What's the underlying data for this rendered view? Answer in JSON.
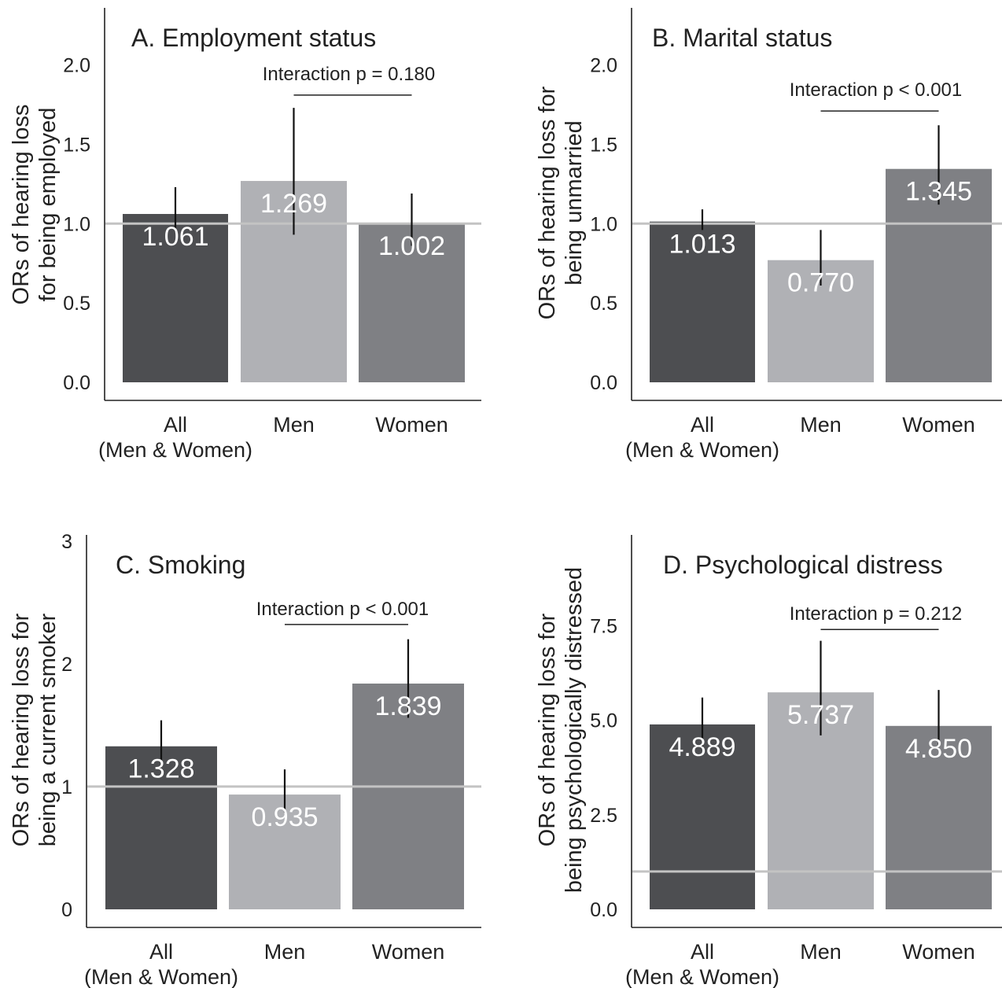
{
  "chart_data": [
    {
      "type": "bar",
      "title": "A. Employment status",
      "ylabel_line1": "ORs of hearing loss",
      "ylabel_line2": "for being employed",
      "categories": [
        [
          "All",
          "(Men & Women)"
        ],
        [
          "Men"
        ],
        [
          "Women"
        ]
      ],
      "values": [
        1.061,
        1.269,
        1.002
      ],
      "value_labels": [
        "1.061",
        "1.269",
        "1.002"
      ],
      "ci_low": [
        0.95,
        0.93,
        0.86
      ],
      "ci_high": [
        1.23,
        1.73,
        1.19
      ],
      "yticks": [
        "0.0",
        "0.5",
        "1.0",
        "1.5",
        "2.0"
      ],
      "ytick_values": [
        0,
        0.5,
        1.0,
        1.5,
        2.0
      ],
      "ylim": [
        0,
        2.36
      ],
      "reference_line": 1,
      "interaction_label": "Interaction p = 0.180",
      "interaction_value": 1.81,
      "bar_colors": [
        "#4d4e51",
        "#b0b1b5",
        "#7f8084"
      ],
      "grid": false
    },
    {
      "type": "bar",
      "title": "B. Marital status",
      "ylabel_line1": "ORs of hearing loss for",
      "ylabel_line2": "being unmarried",
      "categories": [
        [
          "All",
          "(Men & Women)"
        ],
        [
          "Men"
        ],
        [
          "Women"
        ]
      ],
      "values": [
        1.013,
        0.77,
        1.345
      ],
      "value_labels": [
        "1.013",
        "0.770",
        "1.345"
      ],
      "ci_low": [
        0.96,
        0.61,
        1.12
      ],
      "ci_high": [
        1.09,
        0.96,
        1.62
      ],
      "yticks": [
        "0.0",
        "0.5",
        "1.0",
        "1.5",
        "2.0"
      ],
      "ytick_values": [
        0,
        0.5,
        1.0,
        1.5,
        2.0
      ],
      "ylim": [
        0,
        2.36
      ],
      "reference_line": 1,
      "interaction_label": "Interaction p < 0.001",
      "interaction_value": 1.71,
      "bar_colors": [
        "#4d4e51",
        "#b0b1b5",
        "#7f8084"
      ],
      "grid": false
    },
    {
      "type": "bar",
      "title": "C. Smoking",
      "ylabel_line1": "ORs of hearing loss for",
      "ylabel_line2": "being a current smoker",
      "categories": [
        [
          "All",
          "(Men & Women)"
        ],
        [
          "Men"
        ],
        [
          "Women"
        ]
      ],
      "values": [
        1.328,
        0.935,
        1.839
      ],
      "value_labels": [
        "1.328",
        "0.935",
        "1.839"
      ],
      "ci_low": [
        1.16,
        0.79,
        1.56
      ],
      "ci_high": [
        1.54,
        1.14,
        2.2
      ],
      "yticks": [
        "0",
        "1",
        "2",
        "3"
      ],
      "ytick_values": [
        0,
        1,
        2,
        3
      ],
      "ylim": [
        0,
        3.05
      ],
      "reference_line": 1,
      "interaction_label": "Interaction p < 0.001",
      "interaction_value": 2.32,
      "bar_colors": [
        "#4d4e51",
        "#b0b1b5",
        "#7f8084"
      ],
      "grid": false
    },
    {
      "type": "bar",
      "title": "D. Psychological distress",
      "ylabel_line1": "ORs of hearing loss for",
      "ylabel_line2": "being psychologically distressed",
      "categories": [
        [
          "All",
          "(Men & Women)"
        ],
        [
          "Men"
        ],
        [
          "Women"
        ]
      ],
      "values": [
        4.889,
        5.737,
        4.85
      ],
      "value_labels": [
        "4.889",
        "5.737",
        "4.850"
      ],
      "ci_low": [
        4.3,
        4.6,
        4.3
      ],
      "ci_high": [
        5.6,
        7.1,
        5.8
      ],
      "yticks": [
        "0.0",
        "2.5",
        "5.0",
        "7.5"
      ],
      "ytick_values": [
        0,
        2.5,
        5.0,
        7.5
      ],
      "ylim": [
        0,
        9.9
      ],
      "reference_line": 1,
      "interaction_label": "Interaction p = 0.212",
      "interaction_value": 7.4,
      "bar_colors": [
        "#4d4e51",
        "#b0b1b5",
        "#7f8084"
      ],
      "grid": false
    }
  ]
}
